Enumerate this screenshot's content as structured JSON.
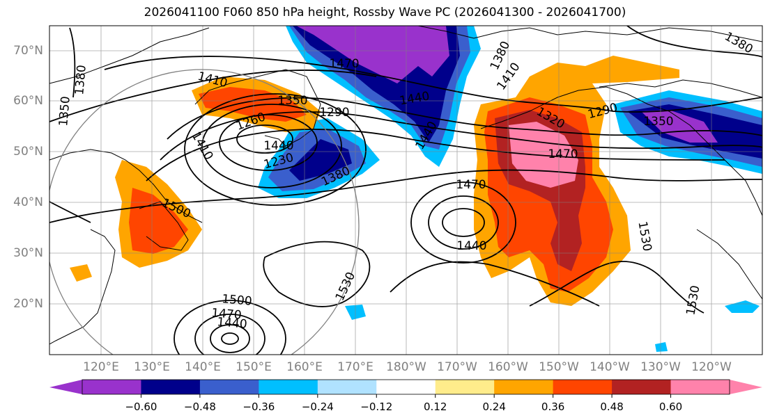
{
  "title": "2026041100 F060 850 hPa height, Rossby Wave PC (2026041300 - 2026041700)",
  "lat_labels": [
    "70°N",
    "60°N",
    "50°N",
    "40°N",
    "30°N",
    "20°N"
  ],
  "lon_labels": [
    "120°E",
    "130°E",
    "140°E",
    "150°E",
    "160°E",
    "170°E",
    "180°W",
    "170°W",
    "160°W",
    "150°W",
    "140°W",
    "130°W",
    "120°W"
  ],
  "contour_labels": [
    "1380",
    "1350",
    "1410",
    "1350",
    "1260",
    "1290",
    "1230",
    "1380",
    "1470",
    "1440",
    "1440",
    "1380",
    "1410",
    "1320",
    "1470",
    "1290",
    "1350",
    "1380",
    "1500",
    "1470",
    "1440",
    "1530",
    "1500",
    "1470",
    "1440",
    "1530",
    "1530",
    "1440",
    "1410"
  ],
  "colorbar": {
    "ticks": [
      "−0.60",
      "−0.48",
      "−0.36",
      "−0.24",
      "−0.12",
      "0.12",
      "0.24",
      "0.36",
      "0.48",
      "0.60"
    ],
    "colors": [
      "#9932cc",
      "#00008b",
      "#3a5fcd",
      "#00bfff",
      "#b0e2ff",
      "#ffffff",
      "#ffec8b",
      "#ffa500",
      "#ff4500",
      "#b22222",
      "#ff82ab"
    ]
  }
}
